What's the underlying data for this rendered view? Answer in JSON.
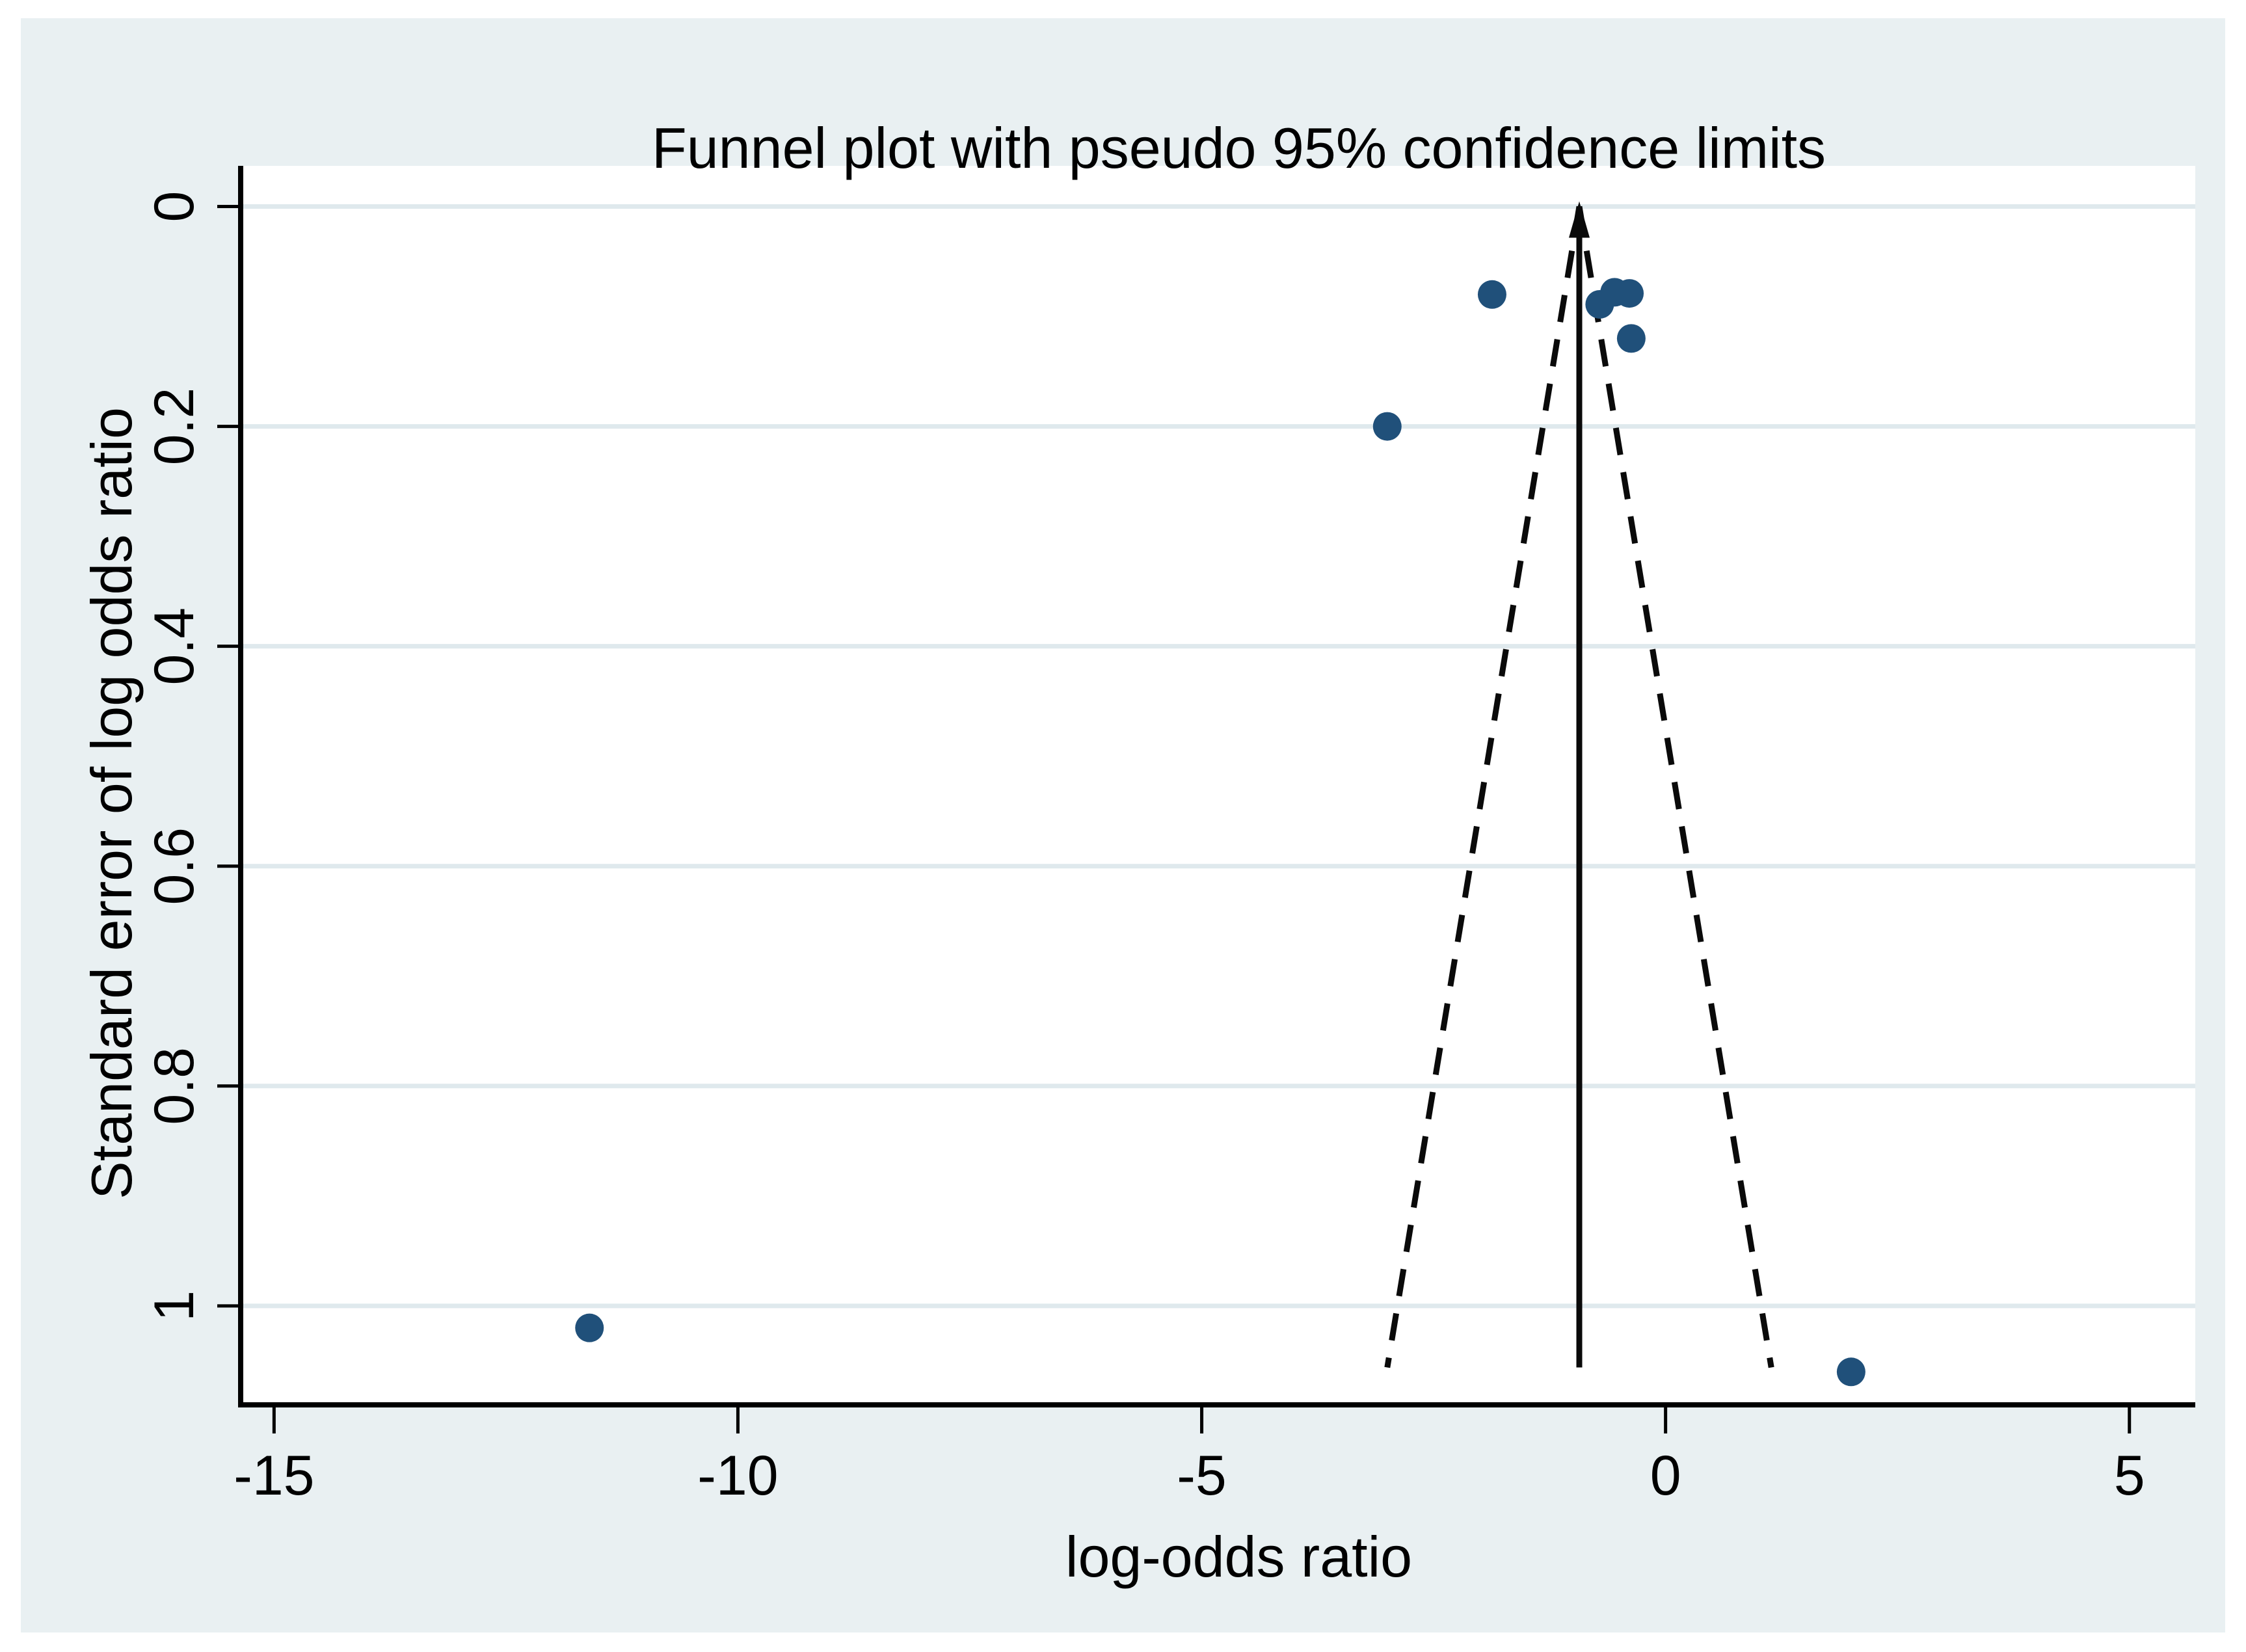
{
  "figure": {
    "title": "Funnel plot with pseudo 95% confidence limits",
    "x_axis_label": "log-odds ratio",
    "y_axis_label": "Standard error of log odds ratio"
  },
  "colors": {
    "figure_bg": "#e9f0f2",
    "plot_bg": "#ffffff",
    "grid": "#dfe9ed",
    "axis": "#000000",
    "tick_text": "#000000",
    "marker": "#20507a",
    "funnel_line": "#0a0a0a",
    "pooled_line": "#0a0a0a"
  },
  "chart_data": {
    "type": "scatter",
    "title": "Funnel plot with pseudo 95% confidence limits",
    "xlabel": "log-odds ratio",
    "ylabel": "Standard error of log odds ratio",
    "x_ticks": [
      -15,
      -10,
      -5,
      0,
      5
    ],
    "x_tick_labels": [
      "-15",
      "-10",
      "-5",
      "0",
      "5"
    ],
    "se_ticks": [
      0,
      0.2,
      0.4,
      0.6,
      0.8,
      1
    ],
    "se_tick_labels": [
      "0",
      "0.2",
      "0.4",
      "0.6",
      "0.8",
      "1"
    ],
    "xlim": [
      -15.36,
      5.71
    ],
    "selim": [
      -0.037,
      1.09
    ],
    "y_axis_inverted": true,
    "grid": true,
    "legend": false,
    "points": [
      {
        "x": -11.6,
        "se": 1.02
      },
      {
        "x": 2.0,
        "se": 1.06
      },
      {
        "x": -3.0,
        "se": 0.2
      },
      {
        "x": -1.87,
        "se": 0.08
      },
      {
        "x": -0.71,
        "se": 0.089
      },
      {
        "x": -0.55,
        "se": 0.078
      },
      {
        "x": -0.39,
        "se": 0.079
      },
      {
        "x": -0.37,
        "se": 0.12
      }
    ],
    "pooled_effect_x": -0.93,
    "ci_multiplier": 1.96,
    "funnel_se_min": 0,
    "funnel_se_max": 1.056,
    "confidence_level": "95%"
  }
}
